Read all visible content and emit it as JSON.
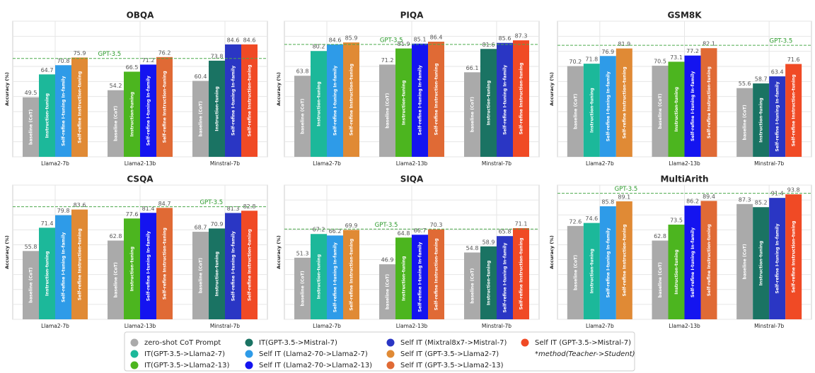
{
  "chart_data": [
    {
      "type": "bar",
      "title": "OBQA",
      "ylabel": "Accuracy (%)",
      "ylim": [
        10,
        100
      ],
      "yticks": [
        10,
        20,
        30,
        40,
        50,
        60,
        70,
        80,
        90,
        100
      ],
      "grid": true,
      "categories": [
        "Llama2-7b",
        "Llama2-13b",
        "Minstral-7b"
      ],
      "bar_labels": [
        "baseline (CoT)",
        "Instruction-tuning",
        "Self-refine I-tuning In-family",
        "Self-refine Instruction-tuning"
      ],
      "values": [
        [
          49.5,
          64.7,
          70.8,
          75.9
        ],
        [
          54.2,
          66.5,
          71.2,
          76.2
        ],
        [
          60.4,
          73.8,
          84.6,
          84.6
        ]
      ],
      "colors": [
        [
          "#aaaaaa",
          "#1cb89a",
          "#2e9be8",
          "#e08a35"
        ],
        [
          "#aaaaaa",
          "#4cb51f",
          "#1414f0",
          "#e06a35"
        ],
        [
          "#aaaaaa",
          "#1a7363",
          "#2a36c4",
          "#f04a25"
        ]
      ],
      "reference": {
        "value": 75.3,
        "label": "GPT-3.5",
        "color": "#4caa4c"
      }
    },
    {
      "type": "bar",
      "title": "PIQA",
      "ylabel": "Accuracy (%)",
      "ylim": [
        10,
        100
      ],
      "yticks": [
        10,
        20,
        30,
        40,
        50,
        60,
        70,
        80,
        90,
        100
      ],
      "grid": true,
      "categories": [
        "Llama2-7b",
        "Llama2-13b",
        "Minstral-7b"
      ],
      "bar_labels": [
        "baseline (CoT)",
        "Instruction-tuning",
        "Self-refine I-tuning In-family",
        "Self-refine Instruction-tuning"
      ],
      "values": [
        [
          63.8,
          80.2,
          84.6,
          85.9
        ],
        [
          71.2,
          81.9,
          85.1,
          86.4
        ],
        [
          66.1,
          81.6,
          85.6,
          87.3
        ]
      ],
      "colors": [
        [
          "#aaaaaa",
          "#1cb89a",
          "#2e9be8",
          "#e08a35"
        ],
        [
          "#aaaaaa",
          "#4cb51f",
          "#1414f0",
          "#e06a35"
        ],
        [
          "#aaaaaa",
          "#1a7363",
          "#2a36c4",
          "#f04a25"
        ]
      ],
      "reference": {
        "value": 84.6,
        "label": "GPT-3.5",
        "color": "#4caa4c"
      }
    },
    {
      "type": "bar",
      "title": "GSM8K",
      "ylabel": "Accuracy (%)",
      "ylim": [
        10,
        100
      ],
      "yticks": [
        10,
        20,
        30,
        40,
        50,
        60,
        70,
        80,
        90,
        100
      ],
      "grid": true,
      "categories": [
        "Llama2-7b",
        "Llama2-13b",
        "Minstral-7b"
      ],
      "bar_labels": [
        "baseline (CoT)",
        "Instruction-tuning",
        "Self-refine I-tuning In-family",
        "Self-refine Instruction-tuning"
      ],
      "values": [
        [
          70.2,
          71.8,
          76.9,
          81.9
        ],
        [
          70.5,
          73.1,
          77.2,
          82.1
        ],
        [
          55.6,
          58.7,
          63.4,
          71.6
        ]
      ],
      "colors": [
        [
          "#aaaaaa",
          "#1cb89a",
          "#2e9be8",
          "#e08a35"
        ],
        [
          "#aaaaaa",
          "#4cb51f",
          "#1414f0",
          "#e06a35"
        ],
        [
          "#aaaaaa",
          "#1a7363",
          "#2a36c4",
          "#f04a25"
        ]
      ],
      "reference": {
        "value": 84,
        "label": "GPT-3.5",
        "color": "#4caa4c"
      }
    },
    {
      "type": "bar",
      "title": "CSQA",
      "ylabel": "Accuracy (%)",
      "ylim": [
        10,
        100
      ],
      "yticks": [
        10,
        20,
        30,
        40,
        50,
        60,
        70,
        80,
        90,
        100
      ],
      "grid": true,
      "categories": [
        "Llama2-7b",
        "Llama2-13b",
        "Minstral-7b"
      ],
      "bar_labels": [
        "baseline (CoT)",
        "Instruction-tuning",
        "Self-refine I-tuning In-family",
        "Self-refine Instruction-tuning"
      ],
      "values": [
        [
          55.8,
          71.4,
          79.8,
          83.6
        ],
        [
          62.8,
          77.6,
          81.4,
          84.7
        ],
        [
          68.7,
          70.9,
          81.3,
          82.8
        ]
      ],
      "colors": [
        [
          "#aaaaaa",
          "#1cb89a",
          "#2e9be8",
          "#e08a35"
        ],
        [
          "#aaaaaa",
          "#4cb51f",
          "#1414f0",
          "#e06a35"
        ],
        [
          "#aaaaaa",
          "#1a7363",
          "#2a36c4",
          "#f04a25"
        ]
      ],
      "reference": {
        "value": 85.5,
        "label": "GPT-3.5",
        "color": "#4caa4c"
      }
    },
    {
      "type": "bar",
      "title": "SIQA",
      "ylabel": "Accuracy (%)",
      "ylim": [
        10,
        100
      ],
      "yticks": [
        10,
        20,
        30,
        40,
        50,
        60,
        70,
        80,
        90,
        100
      ],
      "grid": true,
      "categories": [
        "Llama2-7b",
        "Llama2-13b",
        "Minstral-7b"
      ],
      "bar_labels": [
        "baseline (CoT)",
        "Instruction-tuning",
        "Self-refine I-tuning In-family",
        "Self-refine Instruction-tuning"
      ],
      "values": [
        [
          51.3,
          67.2,
          66.2,
          69.9
        ],
        [
          46.9,
          64.8,
          66.7,
          70.3
        ],
        [
          54.8,
          58.9,
          65.8,
          71.1
        ]
      ],
      "colors": [
        [
          "#aaaaaa",
          "#1cb89a",
          "#2e9be8",
          "#e08a35"
        ],
        [
          "#aaaaaa",
          "#4cb51f",
          "#1414f0",
          "#e06a35"
        ],
        [
          "#aaaaaa",
          "#1a7363",
          "#2a36c4",
          "#f04a25"
        ]
      ],
      "reference": {
        "value": 70.5,
        "label": "GPT-3.5",
        "color": "#4caa4c"
      }
    },
    {
      "type": "bar",
      "title": "MultiArith",
      "ylabel": "Accuracy (%)",
      "ylim": [
        10,
        100
      ],
      "yticks": [
        10,
        20,
        30,
        40,
        50,
        60,
        70,
        80,
        90,
        100
      ],
      "grid": true,
      "categories": [
        "Llama2-7b",
        "Llama2-13b",
        "Minstral-7b"
      ],
      "bar_labels": [
        "baseline (CoT)",
        "Instruction-tuning",
        "Self-refine I-tuning In-family",
        "Self-refine Instruction-tuning"
      ],
      "values": [
        [
          72.6,
          74.6,
          85.8,
          89.1
        ],
        [
          62.8,
          73.5,
          86.2,
          89.4
        ],
        [
          87.3,
          85.2,
          91.4,
          93.8
        ]
      ],
      "colors": [
        [
          "#aaaaaa",
          "#1cb89a",
          "#2e9be8",
          "#e08a35"
        ],
        [
          "#aaaaaa",
          "#4cb51f",
          "#1414f0",
          "#e06a35"
        ],
        [
          "#aaaaaa",
          "#1a7363",
          "#2a36c4",
          "#f04a25"
        ]
      ],
      "reference": {
        "value": 94.5,
        "label": "GPT-3.5",
        "color": "#4caa4c"
      }
    }
  ],
  "legend": {
    "entries": [
      {
        "name": "zero-shot CoT Prompt",
        "color": "#aaaaaa"
      },
      {
        "name": "IT(GPT-3.5->Llama2-7)",
        "color": "#1cb89a"
      },
      {
        "name": "IT(GPT-3.5->Llama2-13)",
        "color": "#4cb51f"
      },
      {
        "name": "IT(GPT-3.5->Mistral-7)",
        "color": "#1a7363"
      },
      {
        "name": "Self IT (Llama2-70->Llama2-7)",
        "color": "#2e9be8"
      },
      {
        "name": "Self IT (Llama2-70->Llama2-13)",
        "color": "#1414f0"
      },
      {
        "name": "Self IT (Mixtral8x7->Mistral-7)",
        "color": "#2a36c4"
      },
      {
        "name": "Self IT (GPT-3.5->Llama2-7)",
        "color": "#e08a35"
      },
      {
        "name": "Self IT (GPT-3.5->Llama2-13)",
        "color": "#e06a35"
      },
      {
        "name": "Self IT (GPT-3.5->Mistral-7)",
        "color": "#f04a25"
      }
    ],
    "note": "*method(Teacher->Student)"
  }
}
